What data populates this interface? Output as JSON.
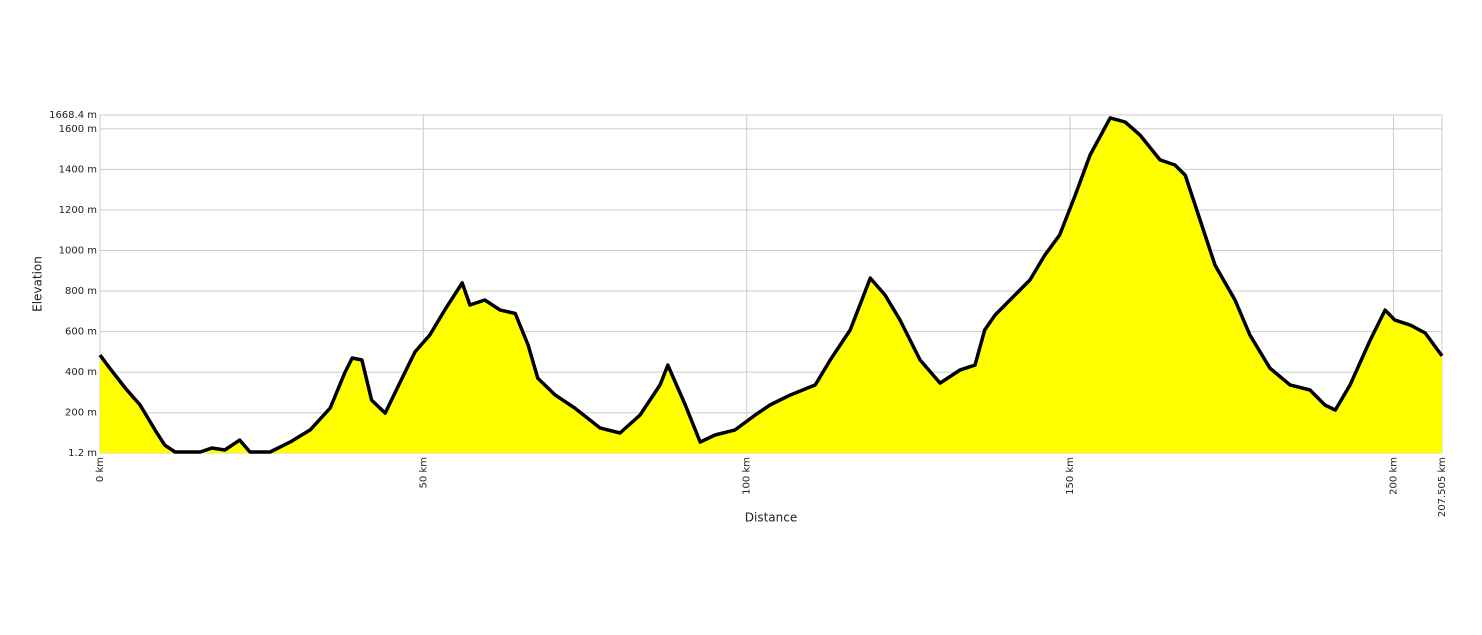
{
  "chart_data": {
    "type": "area",
    "xlabel": "Distance",
    "ylabel": "Elevation",
    "fill": "#ffff00",
    "line_color": "#000000",
    "grid": true,
    "xlim": [
      0,
      207.505
    ],
    "ylim": [
      1.2,
      1668.4
    ],
    "xticks": [
      {
        "value": 0,
        "label": "0 km"
      },
      {
        "value": 50,
        "label": "50 km"
      },
      {
        "value": 100,
        "label": "100 km"
      },
      {
        "value": 150,
        "label": "150 km"
      },
      {
        "value": 200,
        "label": "200 km"
      },
      {
        "value": 207.505,
        "label": "207.505 km"
      }
    ],
    "yticks": [
      {
        "value": 1.2,
        "label": "1.2 m"
      },
      {
        "value": 200,
        "label": "200 m"
      },
      {
        "value": 400,
        "label": "400 m"
      },
      {
        "value": 600,
        "label": "600 m"
      },
      {
        "value": 800,
        "label": "800 m"
      },
      {
        "value": 1000,
        "label": "1000 m"
      },
      {
        "value": 1200,
        "label": "1200 m"
      },
      {
        "value": 1400,
        "label": "1400 m"
      },
      {
        "value": 1600,
        "label": "1600 m"
      },
      {
        "value": 1668.4,
        "label": "1668.4 m"
      }
    ],
    "x": [
      0,
      1.5,
      3.9,
      6.2,
      8.5,
      10,
      11.6,
      15.5,
      17.3,
      19.3,
      21.6,
      23.2,
      26.3,
      29.4,
      32.5,
      35.6,
      37.9,
      39,
      40.5,
      42,
      44.1,
      46.4,
      48.7,
      51,
      53.3,
      56,
      57.2,
      59.5,
      61.9,
      64.2,
      66.2,
      67.7,
      70.4,
      73.4,
      77.3,
      80.4,
      83.5,
      86.6,
      87.8,
      90.5,
      92.8,
      95.1,
      98.2,
      101.3,
      103.6,
      106.7,
      110.6,
      112.9,
      116,
      119.1,
      121.4,
      123.7,
      126.8,
      129.9,
      133,
      135.3,
      136.8,
      138.4,
      140.7,
      143.8,
      146.1,
      148.4,
      150.8,
      153.1,
      156.2,
      158.5,
      160.8,
      163.9,
      166.2,
      167.8,
      170.1,
      172.4,
      175.5,
      177.8,
      180.9,
      184,
      187.1,
      189.4,
      191,
      193.3,
      196.4,
      198.7,
      200.2,
      202.6,
      204.9,
      207.5
    ],
    "values": [
      484,
      420,
      322,
      238,
      115,
      40,
      6,
      6,
      26,
      16,
      65,
      6,
      6,
      55,
      115,
      223,
      400,
      470,
      460,
      262,
      198,
      350,
      500,
      583,
      706,
      840,
      731,
      756,
      706,
      690,
      534,
      370,
      287,
      223,
      125,
      100,
      188,
      337,
      435,
      238,
      55,
      90,
      115,
      188,
      238,
      287,
      337,
      460,
      608,
      864,
      780,
      657,
      460,
      346,
      411,
      435,
      608,
      682,
      756,
      855,
      978,
      1077,
      1274,
      1471,
      1654,
      1634,
      1570,
      1447,
      1422,
      1372,
      1150,
      928,
      756,
      583,
      420,
      337,
      312,
      238,
      213,
      337,
      558,
      706,
      657,
      632,
      593,
      480
    ]
  }
}
